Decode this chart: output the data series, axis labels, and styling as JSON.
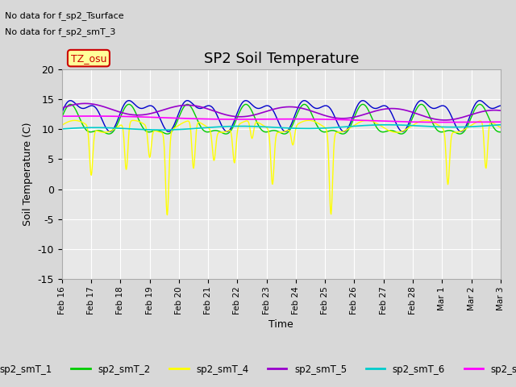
{
  "title": "SP2 Soil Temperature",
  "xlabel": "Time",
  "ylabel": "Soil Temperature (C)",
  "ylim": [
    -15,
    20
  ],
  "yticks": [
    -15,
    -10,
    -5,
    0,
    5,
    10,
    15,
    20
  ],
  "no_data_text": [
    "No data for f_sp2_Tsurface",
    "No data for f_sp2_smT_3"
  ],
  "tz_label": "TZ_osu",
  "fig_bg_color": "#d8d8d8",
  "plot_bg_color": "#e8e8e8",
  "grid_color": "#ffffff",
  "series_colors": {
    "sp2_smT_1": "#0000cc",
    "sp2_smT_2": "#00cc00",
    "sp2_smT_4": "#ffff00",
    "sp2_smT_5": "#9900cc",
    "sp2_smT_6": "#00cccc",
    "sp2_smT_7": "#ff00ff"
  },
  "xtick_labels": [
    "Feb 16",
    "Feb 17",
    "Feb 18",
    "Feb 19",
    "Feb 20",
    "Feb 21",
    "Feb 22",
    "Feb 23",
    "Feb 24",
    "Feb 25",
    "Feb 26",
    "Feb 27",
    "Feb 28",
    "Mar 1",
    "Mar 2",
    "Mar 3"
  ],
  "n_points": 1000
}
